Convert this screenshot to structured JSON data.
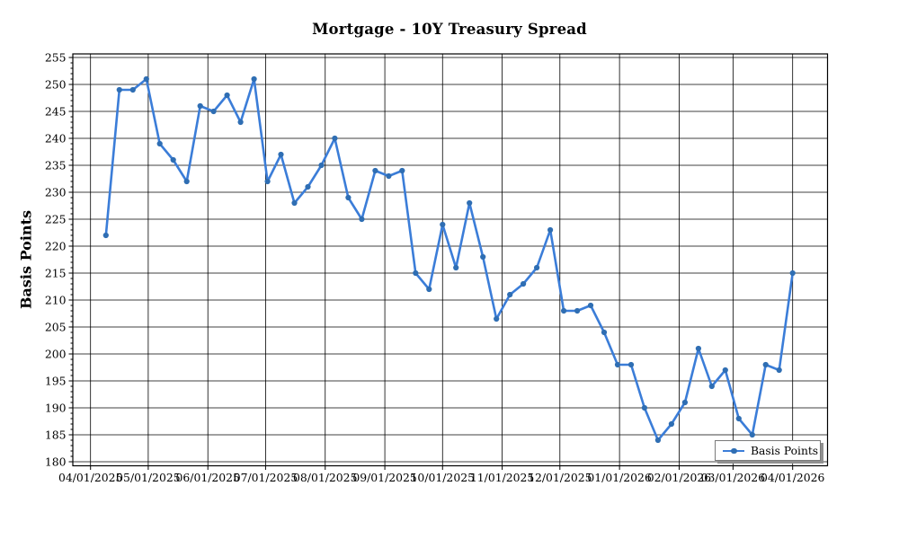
{
  "title": "Mortgage - 10Y Treasury Spread",
  "y_axis_title": "Basis Points",
  "legend": {
    "label": "Basis Points",
    "position": "lower right"
  },
  "colors": {
    "line": "#3b7dd8",
    "marker": "#2f6eb3",
    "grid": "#000000",
    "axis": "#000000",
    "legend_border": "#7a7a7a",
    "legend_shadow": "#909090"
  },
  "chart_data": {
    "type": "line",
    "title": "Mortgage - 10Y Treasury Spread",
    "xlabel": "",
    "ylabel": "Basis Points",
    "grid": true,
    "legend": {
      "label": "Basis Points",
      "position": "lower right"
    },
    "ylim": [
      179,
      255.8
    ],
    "y_tick_min": 180,
    "y_tick_max": 255,
    "y_tick_step": 5,
    "y_minor_tick_step": 1,
    "x_tick_labels": [
      "04/01/2025",
      "05/01/2025",
      "06/01/2025",
      "07/01/2025",
      "08/01/2025",
      "09/01/2025",
      "10/01/2025",
      "11/01/2025",
      "12/01/2025",
      "01/01/2026",
      "02/01/2026",
      "03/01/2026",
      "04/01/2026"
    ],
    "x_cadence": "weekly",
    "series": [
      {
        "name": "Basis Points",
        "values": [
          222,
          249,
          249,
          251,
          239,
          236,
          232,
          246,
          245,
          248,
          243,
          251,
          232,
          237,
          228,
          231,
          235,
          240,
          229,
          225,
          234,
          233,
          234,
          215,
          212,
          224,
          216,
          228,
          218,
          206.5,
          211,
          213,
          216,
          223,
          208,
          208,
          209,
          204,
          198,
          198,
          190,
          184,
          187,
          191,
          201,
          194,
          197,
          188,
          185,
          198,
          197,
          215
        ]
      }
    ]
  }
}
